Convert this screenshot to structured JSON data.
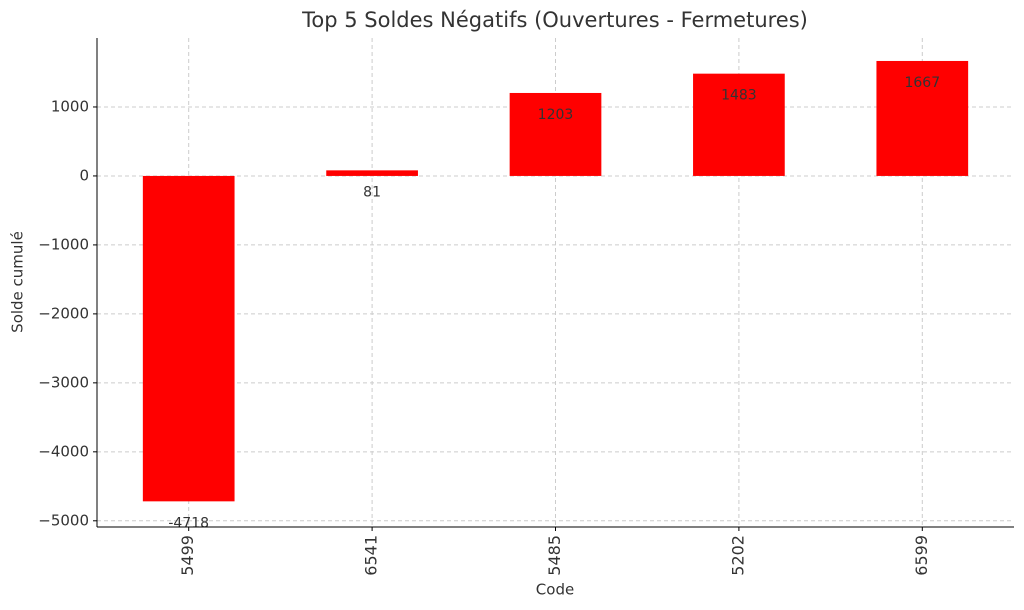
{
  "chart_data": {
    "type": "bar",
    "title": "Top 5 Soldes Négatifs (Ouvertures - Fermetures)",
    "x_label": "Code",
    "y_label": "Solde cumulé",
    "categories": [
      "5499",
      "6541",
      "5485",
      "5202",
      "6599"
    ],
    "values": [
      -4718,
      81,
      1203,
      1483,
      1667
    ],
    "color": "#ff0000",
    "ylim": [
      -5090,
      2000
    ],
    "yticks": [
      {
        "value": -5000,
        "label": "−5000"
      },
      {
        "value": -4000,
        "label": "−4000"
      },
      {
        "value": -3000,
        "label": "−3000"
      },
      {
        "value": -2000,
        "label": "−2000"
      },
      {
        "value": -1000,
        "label": "−1000"
      },
      0,
      1000
    ],
    "grid": true
  }
}
